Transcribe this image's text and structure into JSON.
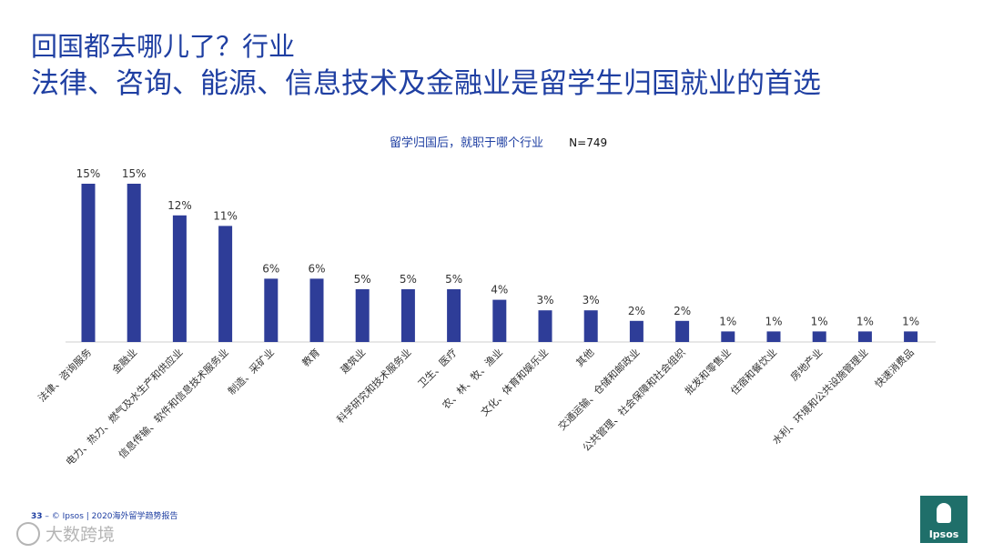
{
  "slide": {
    "title_line1": "回国都去哪儿了？行业",
    "title_line2": "法律、咨询、能源、信息技术及金融业是留学生归国就业的首选"
  },
  "chart_header": {
    "question": "留学归国后，就职于哪个行业",
    "n": "N=749"
  },
  "chart_data": {
    "type": "bar",
    "title": "留学归国后，就职于哪个行业",
    "categories": [
      "法律、咨询服务",
      "金融业",
      "电力、热力、燃气及水生产和供应业",
      "信息传输、软件和信息技术服务业",
      "制造、采矿业",
      "教育",
      "建筑业",
      "科学研究和技术服务业",
      "卫生、医疗",
      "农、林、牧、渔业",
      "文化、体育和娱乐业",
      "其他",
      "交通运输、仓储和邮政业",
      "公共管理、社会保障和社会组织",
      "批发和零售业",
      "住宿和餐饮业",
      "房地产业",
      "水利、环境和公共设施管理业",
      "快速消费品"
    ],
    "values": [
      15,
      15,
      12,
      11,
      6,
      6,
      5,
      5,
      5,
      4,
      3,
      3,
      2,
      2,
      1,
      1,
      1,
      1,
      1
    ],
    "data_labels": [
      "15%",
      "15%",
      "12%",
      "11%",
      "6%",
      "6%",
      "5%",
      "5%",
      "5%",
      "4%",
      "3%",
      "3%",
      "2%",
      "2%",
      "1%",
      "1%",
      "1%",
      "1%",
      "1%"
    ],
    "unit": "%",
    "bar_color": "#2e3d98",
    "ylim": [
      0,
      15
    ],
    "xlabel": "",
    "ylabel": "",
    "grid": false
  },
  "footer": {
    "page_number": "33",
    "text": "– © Ipsos | 2020海外留学趋势报告"
  },
  "watermark": {
    "text": "大数跨境"
  },
  "logo": {
    "text": "Ipsos",
    "color": "#1f6f6a"
  }
}
